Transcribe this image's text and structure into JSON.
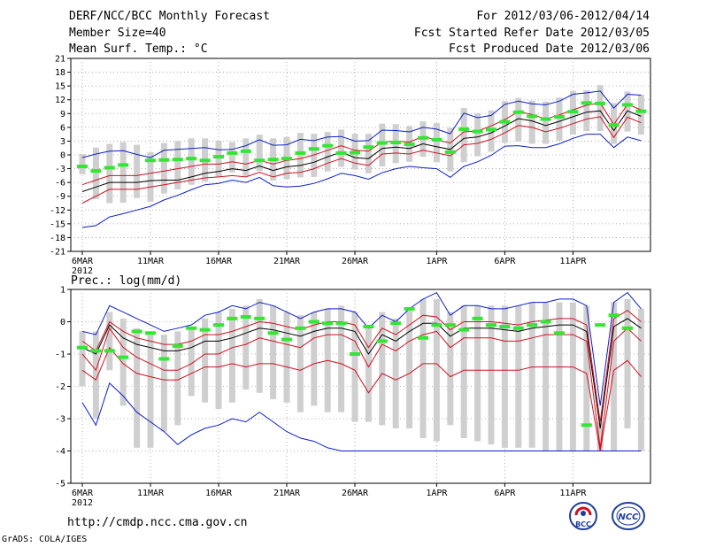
{
  "header": {
    "title": "DERF/NCC/BCC Monthly Forecast",
    "member_size": "Member Size=40",
    "variable": "Mean Surf. Temp.: °C",
    "period": "For 2012/03/06-2012/04/14",
    "started": "Fcst Started Refer Date 2012/03/05",
    "produced": "Fcst Produced Date 2012/03/06"
  },
  "panel2_label": "Prec.: log(mm/d)",
  "footer": {
    "url": "http://cmdp.ncc.cma.gov.cn",
    "grads": "GrADS: COLA/IGES",
    "logo_bcc": "BCC",
    "logo_ncc": "NCC"
  },
  "colors": {
    "box": "#cfcfcf",
    "mean": "#000000",
    "inner": "#d01020",
    "outer": "#0b1ec8",
    "obs": "#33e633",
    "grid": "#9a9a9a"
  },
  "chart_data": [
    {
      "type": "box",
      "title": "Mean Surf. Temp.: °C",
      "x_tick_labels": [
        "6MAR",
        "11MAR",
        "16MAR",
        "21MAR",
        "26MAR",
        "1APR",
        "6APR",
        "11APR"
      ],
      "x_year_label": "2012",
      "x_tick_days": [
        0,
        5,
        10,
        15,
        20,
        26,
        31,
        36
      ],
      "ylim": [
        -21,
        21
      ],
      "y_ticks": [
        -21,
        -18,
        -15,
        -12,
        -9,
        -6,
        -3,
        0,
        3,
        6,
        9,
        12,
        15,
        18,
        21
      ],
      "series": [
        {
          "name": "ensemble mean",
          "values": [
            -8,
            -7,
            -6,
            -6,
            -6,
            -5.6,
            -5.5,
            -5.5,
            -4.8,
            -4,
            -3.6,
            -3,
            -3.4,
            -2.4,
            -3.4,
            -2.6,
            -2.3,
            -1.6,
            -0.4,
            0.6,
            -0.6,
            -0.8,
            1.4,
            1.7,
            1.4,
            2.4,
            1.8,
            1.2,
            3.6,
            3.9,
            4.8,
            6.3,
            7.9,
            7.4,
            6.4,
            7.3,
            8.3,
            9.3,
            9.6,
            5.3,
            9.6,
            8.4
          ]
        },
        {
          "name": "upper inner",
          "values": [
            -6.5,
            -5.5,
            -4.5,
            -4.5,
            -4.5,
            -4,
            -3.5,
            -3,
            -2.5,
            -2,
            -2,
            -1.5,
            -2,
            -1.2,
            -2,
            -1.2,
            -0.8,
            0,
            1,
            2,
            1,
            0.8,
            2.8,
            3,
            2.8,
            4,
            3.2,
            2.6,
            5,
            5.2,
            6.3,
            7.7,
            9.4,
            8.8,
            7.8,
            8.7,
            9.8,
            10.8,
            11.3,
            6.6,
            11,
            9.8
          ]
        },
        {
          "name": "lower inner",
          "values": [
            -10.5,
            -9,
            -7.5,
            -7.5,
            -7.5,
            -7,
            -6.5,
            -6,
            -5.5,
            -5,
            -4.8,
            -4.5,
            -4.8,
            -3.8,
            -4.8,
            -4,
            -3.8,
            -3,
            -1.8,
            -0.8,
            -1.8,
            -2.3,
            0.2,
            0.4,
            0.2,
            1,
            0.4,
            -0.2,
            2.2,
            2.5,
            3.4,
            4.8,
            6.4,
            6,
            5,
            5.8,
            6.8,
            7.8,
            8.3,
            3.8,
            8.2,
            7
          ]
        },
        {
          "name": "max",
          "values": [
            -0.6,
            0.2,
            0.8,
            0.9,
            0.1,
            -0.6,
            1,
            1.2,
            1.4,
            1.6,
            1.1,
            1.2,
            2,
            3.3,
            2.1,
            2.2,
            3.4,
            3.1,
            3.9,
            4,
            3,
            3.1,
            5.4,
            5.3,
            5,
            6,
            5.6,
            4.6,
            9.1,
            8.1,
            8.6,
            11,
            11.7,
            11.1,
            10.9,
            11.7,
            13.2,
            13.5,
            13.9,
            10.2,
            13.2,
            13
          ]
        },
        {
          "name": "min",
          "values": [
            -15.8,
            -15.4,
            -13.5,
            -12.8,
            -12,
            -11.2,
            -9.8,
            -8.8,
            -7.6,
            -6.5,
            -6.2,
            -5.5,
            -6,
            -4.9,
            -6.7,
            -7,
            -6.8,
            -6.2,
            -5.2,
            -4,
            -4.5,
            -5.3,
            -3.9,
            -3,
            -2.5,
            -2.8,
            -3,
            -4.9,
            -2.5,
            -1.5,
            -0.1,
            1.9,
            2,
            1.6,
            1.6,
            2.4,
            3.6,
            4.5,
            4.5,
            1.6,
            3.9,
            3.1
          ]
        },
        {
          "name": "box top",
          "values": [
            0.2,
            1.6,
            2.4,
            2.8,
            2.2,
            0.6,
            2.6,
            3,
            3.6,
            3.6,
            3.1,
            2.8,
            3.6,
            4.4,
            3.6,
            3.9,
            4.8,
            4.6,
            5,
            5.5,
            4.6,
            4.6,
            6.8,
            6.7,
            6.3,
            7.3,
            6.9,
            5.9,
            10.2,
            9.1,
            9.7,
            11.7,
            12.4,
            11.8,
            11.6,
            12.5,
            13.9,
            14.1,
            15.2,
            11.3,
            13.8,
            13.1
          ]
        },
        {
          "name": "box bottom",
          "values": [
            -4.2,
            -9.6,
            -10.5,
            -10.4,
            -9.4,
            -10.2,
            -8.4,
            -7.5,
            -6.5,
            -5.8,
            -4.8,
            -3.8,
            -4.6,
            -3.5,
            -5.6,
            -5.3,
            -4.9,
            -4.8,
            -3.6,
            -2.6,
            -3.2,
            -4,
            -2.5,
            -1.8,
            -1.5,
            -0.4,
            -1.6,
            -3.6,
            -1.6,
            -0.3,
            0.7,
            2.6,
            2.9,
            2.4,
            2.4,
            3.1,
            4.4,
            5.2,
            5.2,
            2.4,
            5.1,
            4.4
          ]
        },
        {
          "name": "observation",
          "values": [
            -2.5,
            -3.5,
            -2.8,
            -2.2,
            null,
            -1.2,
            -1.1,
            -1,
            -0.8,
            -1.2,
            -0.4,
            0.4,
            0.8,
            -1.2,
            -1,
            -0.8,
            0.4,
            1.3,
            2,
            0.4,
            0.5,
            1.7,
            2.6,
            2.7,
            2.3,
            3.7,
            3.3,
            0.6,
            5.6,
            5.1,
            5.5,
            7.2,
            9.3,
            8.4,
            7.8,
            8.3,
            9.4,
            11.3,
            11.2,
            6.5,
            10.9,
            9.5
          ]
        }
      ]
    },
    {
      "type": "box",
      "title": "Prec.: log(mm/d)",
      "x_tick_labels": [
        "6MAR",
        "11MAR",
        "16MAR",
        "21MAR",
        "26MAR",
        "1APR",
        "6APR",
        "11APR"
      ],
      "x_year_label": "2012",
      "x_tick_days": [
        0,
        5,
        10,
        15,
        20,
        26,
        31,
        36
      ],
      "ylim": [
        -5,
        1
      ],
      "y_ticks": [
        -5,
        -4,
        -3,
        -2,
        -1,
        0,
        1
      ],
      "series": [
        {
          "name": "ensemble mean",
          "values": [
            -0.8,
            -1,
            -0.1,
            -0.5,
            -0.7,
            -0.8,
            -0.9,
            -0.9,
            -0.8,
            -0.6,
            -0.6,
            -0.5,
            -0.35,
            -0.2,
            -0.25,
            -0.35,
            -0.45,
            -0.3,
            -0.2,
            -0.2,
            -0.3,
            -1,
            -0.4,
            -0.6,
            -0.3,
            -0.05,
            -0.05,
            -0.45,
            -0.2,
            -0.2,
            -0.2,
            -0.25,
            -0.3,
            -0.2,
            -0.15,
            -0.1,
            -0.1,
            -0.3,
            -3.3,
            -0.15,
            0.1,
            -0.2
          ]
        },
        {
          "name": "upper inner",
          "values": [
            -0.6,
            -0.9,
            0,
            -0.3,
            -0.5,
            -0.6,
            -0.7,
            -0.7,
            -0.6,
            -0.4,
            -0.4,
            -0.3,
            -0.15,
            0,
            -0.05,
            -0.15,
            -0.25,
            -0.1,
            0,
            0,
            -0.1,
            -0.8,
            -0.2,
            -0.4,
            -0.1,
            0.2,
            0.15,
            -0.25,
            0,
            0,
            0,
            -0.05,
            -0.1,
            0,
            0.05,
            0.1,
            0.1,
            -0.1,
            -3.1,
            0.1,
            0.35,
            0
          ]
        },
        {
          "name": "lower inner",
          "values": [
            -1,
            -1.5,
            -0.2,
            -0.8,
            -1.1,
            -1.3,
            -1.5,
            -1.5,
            -1.3,
            -1,
            -1,
            -0.8,
            -0.7,
            -0.5,
            -0.6,
            -0.7,
            -0.8,
            -0.5,
            -0.4,
            -0.4,
            -0.6,
            -1.4,
            -0.7,
            -0.9,
            -0.6,
            -0.4,
            -0.3,
            -0.8,
            -0.5,
            -0.5,
            -0.5,
            -0.6,
            -0.6,
            -0.5,
            -0.4,
            -0.4,
            -0.4,
            -0.6,
            -3.9,
            -0.6,
            -0.2,
            -0.6
          ]
        },
        {
          "name": "max",
          "values": [
            -0.3,
            -0.4,
            0.5,
            0.3,
            0.1,
            -0.1,
            -0.3,
            -0.2,
            -0.1,
            0.2,
            0.3,
            0.5,
            0.4,
            0.6,
            0.5,
            0.3,
            0.1,
            0.3,
            0.4,
            0.4,
            0.3,
            -0.2,
            0.2,
            0,
            0.4,
            0.7,
            0.9,
            0.2,
            0.5,
            0.5,
            0.4,
            0.4,
            0.5,
            0.6,
            0.6,
            0.7,
            0.7,
            0.5,
            -2.6,
            0.6,
            0.9,
            0.4
          ]
        },
        {
          "name": "min",
          "values": [
            -2.5,
            -3.2,
            -1.9,
            -2.3,
            -2.8,
            -3.1,
            -3.4,
            -3.8,
            -3.5,
            -3.3,
            -3.2,
            -3,
            -3.1,
            -2.8,
            -3.1,
            -3.4,
            -3.6,
            -3.7,
            -3.9,
            -4,
            -4,
            -4,
            -4,
            -4,
            -4,
            -4,
            -4,
            -4,
            -4,
            -4,
            -4,
            -4,
            -4,
            -4,
            -4,
            -4,
            -4,
            -4,
            -4,
            -4,
            -4,
            -4
          ]
        },
        {
          "name": "inner low",
          "values": [
            -1.5,
            -1.8,
            -0.8,
            -1.3,
            -1.6,
            -1.7,
            -1.8,
            -1.8,
            -1.6,
            -1.4,
            -1.4,
            -1.3,
            -1.4,
            -1.3,
            -1.3,
            -1.4,
            -1.5,
            -1.3,
            -1.2,
            -1.3,
            -1.5,
            -2.2,
            -1.6,
            -1.8,
            -1.6,
            -1.3,
            -1.3,
            -1.7,
            -1.5,
            -1.5,
            -1.5,
            -1.5,
            -1.5,
            -1.4,
            -1.4,
            -1.4,
            -1.4,
            -1.6,
            -4,
            -1.5,
            -1.2,
            -1.7
          ]
        },
        {
          "name": "box top",
          "values": [
            -0.3,
            -0.3,
            0.3,
            0.1,
            -0.2,
            -0.3,
            -0.4,
            -0.3,
            -0.2,
            0.1,
            0.3,
            0.4,
            0.5,
            0.7,
            0.5,
            0.3,
            0.2,
            0.3,
            0.4,
            0.5,
            0.3,
            -0.1,
            0.3,
            0.1,
            0.4,
            0.7,
            0.7,
            0.3,
            0.5,
            0.5,
            0.5,
            0.5,
            0.5,
            0.6,
            0.6,
            0.6,
            0.6,
            0.5,
            -3.1,
            0.6,
            0.7,
            0.4
          ]
        },
        {
          "name": "box bottom",
          "values": [
            -2,
            -3,
            -1.5,
            -2.6,
            -3.9,
            -3.9,
            -3.4,
            -3.2,
            -2.3,
            -2.5,
            -2.7,
            -2.5,
            -2.1,
            -2.2,
            -2.4,
            -2.5,
            -2.8,
            -2.6,
            -2.8,
            -2.8,
            -3.1,
            -3.1,
            -3.2,
            -3.3,
            -3.3,
            -3.6,
            -3.7,
            -3.2,
            -3.6,
            -3.7,
            -3.8,
            -3.9,
            -3.9,
            -3.9,
            -4,
            -4,
            -4,
            -4,
            -4,
            -4,
            -3.3,
            -4
          ]
        },
        {
          "name": "observation",
          "values": [
            -0.8,
            -0.9,
            -0.9,
            -1.1,
            -0.3,
            -0.35,
            -1.15,
            -0.75,
            -0.2,
            -0.25,
            -0.1,
            0.1,
            0.15,
            0.1,
            -0.35,
            -0.55,
            -0.2,
            0,
            -0.05,
            -0.05,
            -1,
            -0.15,
            -0.6,
            -0.05,
            0.4,
            -0.5,
            -0.1,
            -0.1,
            -0.25,
            0.1,
            -0.1,
            -0.15,
            -0.2,
            -0.1,
            0,
            -0.35,
            null,
            -3.2,
            -0.1,
            0.2,
            -0.2,
            null
          ]
        }
      ]
    }
  ]
}
